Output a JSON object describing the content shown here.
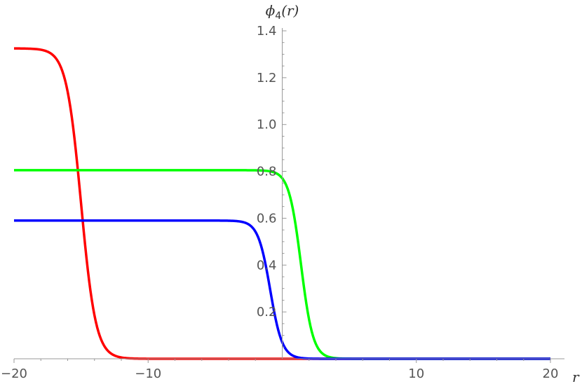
{
  "chart_data": {
    "type": "line",
    "xlabel": "r",
    "ylabel": {
      "symbol": "ϕ",
      "subscript": "4",
      "argument": "(r)"
    },
    "xlim": [
      -20,
      20
    ],
    "ylim": [
      0,
      1.4
    ],
    "x_ticks": [
      -20,
      -10,
      10,
      20
    ],
    "x_tick_labels": [
      "−20",
      "−10",
      "10",
      "20"
    ],
    "y_ticks": [
      0.2,
      0.4,
      0.6,
      0.8,
      1.0,
      1.2,
      1.4
    ],
    "y_tick_labels": [
      "0.2",
      "0.4",
      "0.6",
      "0.8",
      "1.0",
      "1.2",
      "1.4"
    ],
    "grid": false,
    "axes_origin": [
      0,
      0
    ],
    "series": [
      {
        "color": "#ff0000",
        "plateau": 1.325,
        "center": -15.0,
        "width": 0.55,
        "points": [
          [
            -20,
            1.325
          ],
          [
            -17,
            1.29
          ],
          [
            -16,
            1.1
          ],
          [
            -15,
            0.66
          ],
          [
            -14,
            0.22
          ],
          [
            -13,
            0.04
          ],
          [
            -12,
            0.005
          ],
          [
            -10,
            0
          ],
          [
            20,
            0
          ]
        ]
      },
      {
        "color": "#00ff00",
        "plateau": 0.805,
        "center": 1.4,
        "width": 0.45,
        "points": [
          [
            -20,
            0.805
          ],
          [
            0,
            0.79
          ],
          [
            1,
            0.58
          ],
          [
            1.4,
            0.4
          ],
          [
            2,
            0.22
          ],
          [
            3,
            0.05
          ],
          [
            4,
            0.01
          ],
          [
            6,
            0
          ],
          [
            20,
            0
          ]
        ]
      },
      {
        "color": "#0000ff",
        "plateau": 0.59,
        "center": -0.9,
        "width": 0.45,
        "points": [
          [
            -20,
            0.59
          ],
          [
            -2.5,
            0.58
          ],
          [
            -1.5,
            0.44
          ],
          [
            -0.9,
            0.29
          ],
          [
            0,
            0.15
          ],
          [
            1,
            0.05
          ],
          [
            2,
            0.015
          ],
          [
            4,
            0
          ],
          [
            20,
            0
          ]
        ]
      }
    ]
  }
}
